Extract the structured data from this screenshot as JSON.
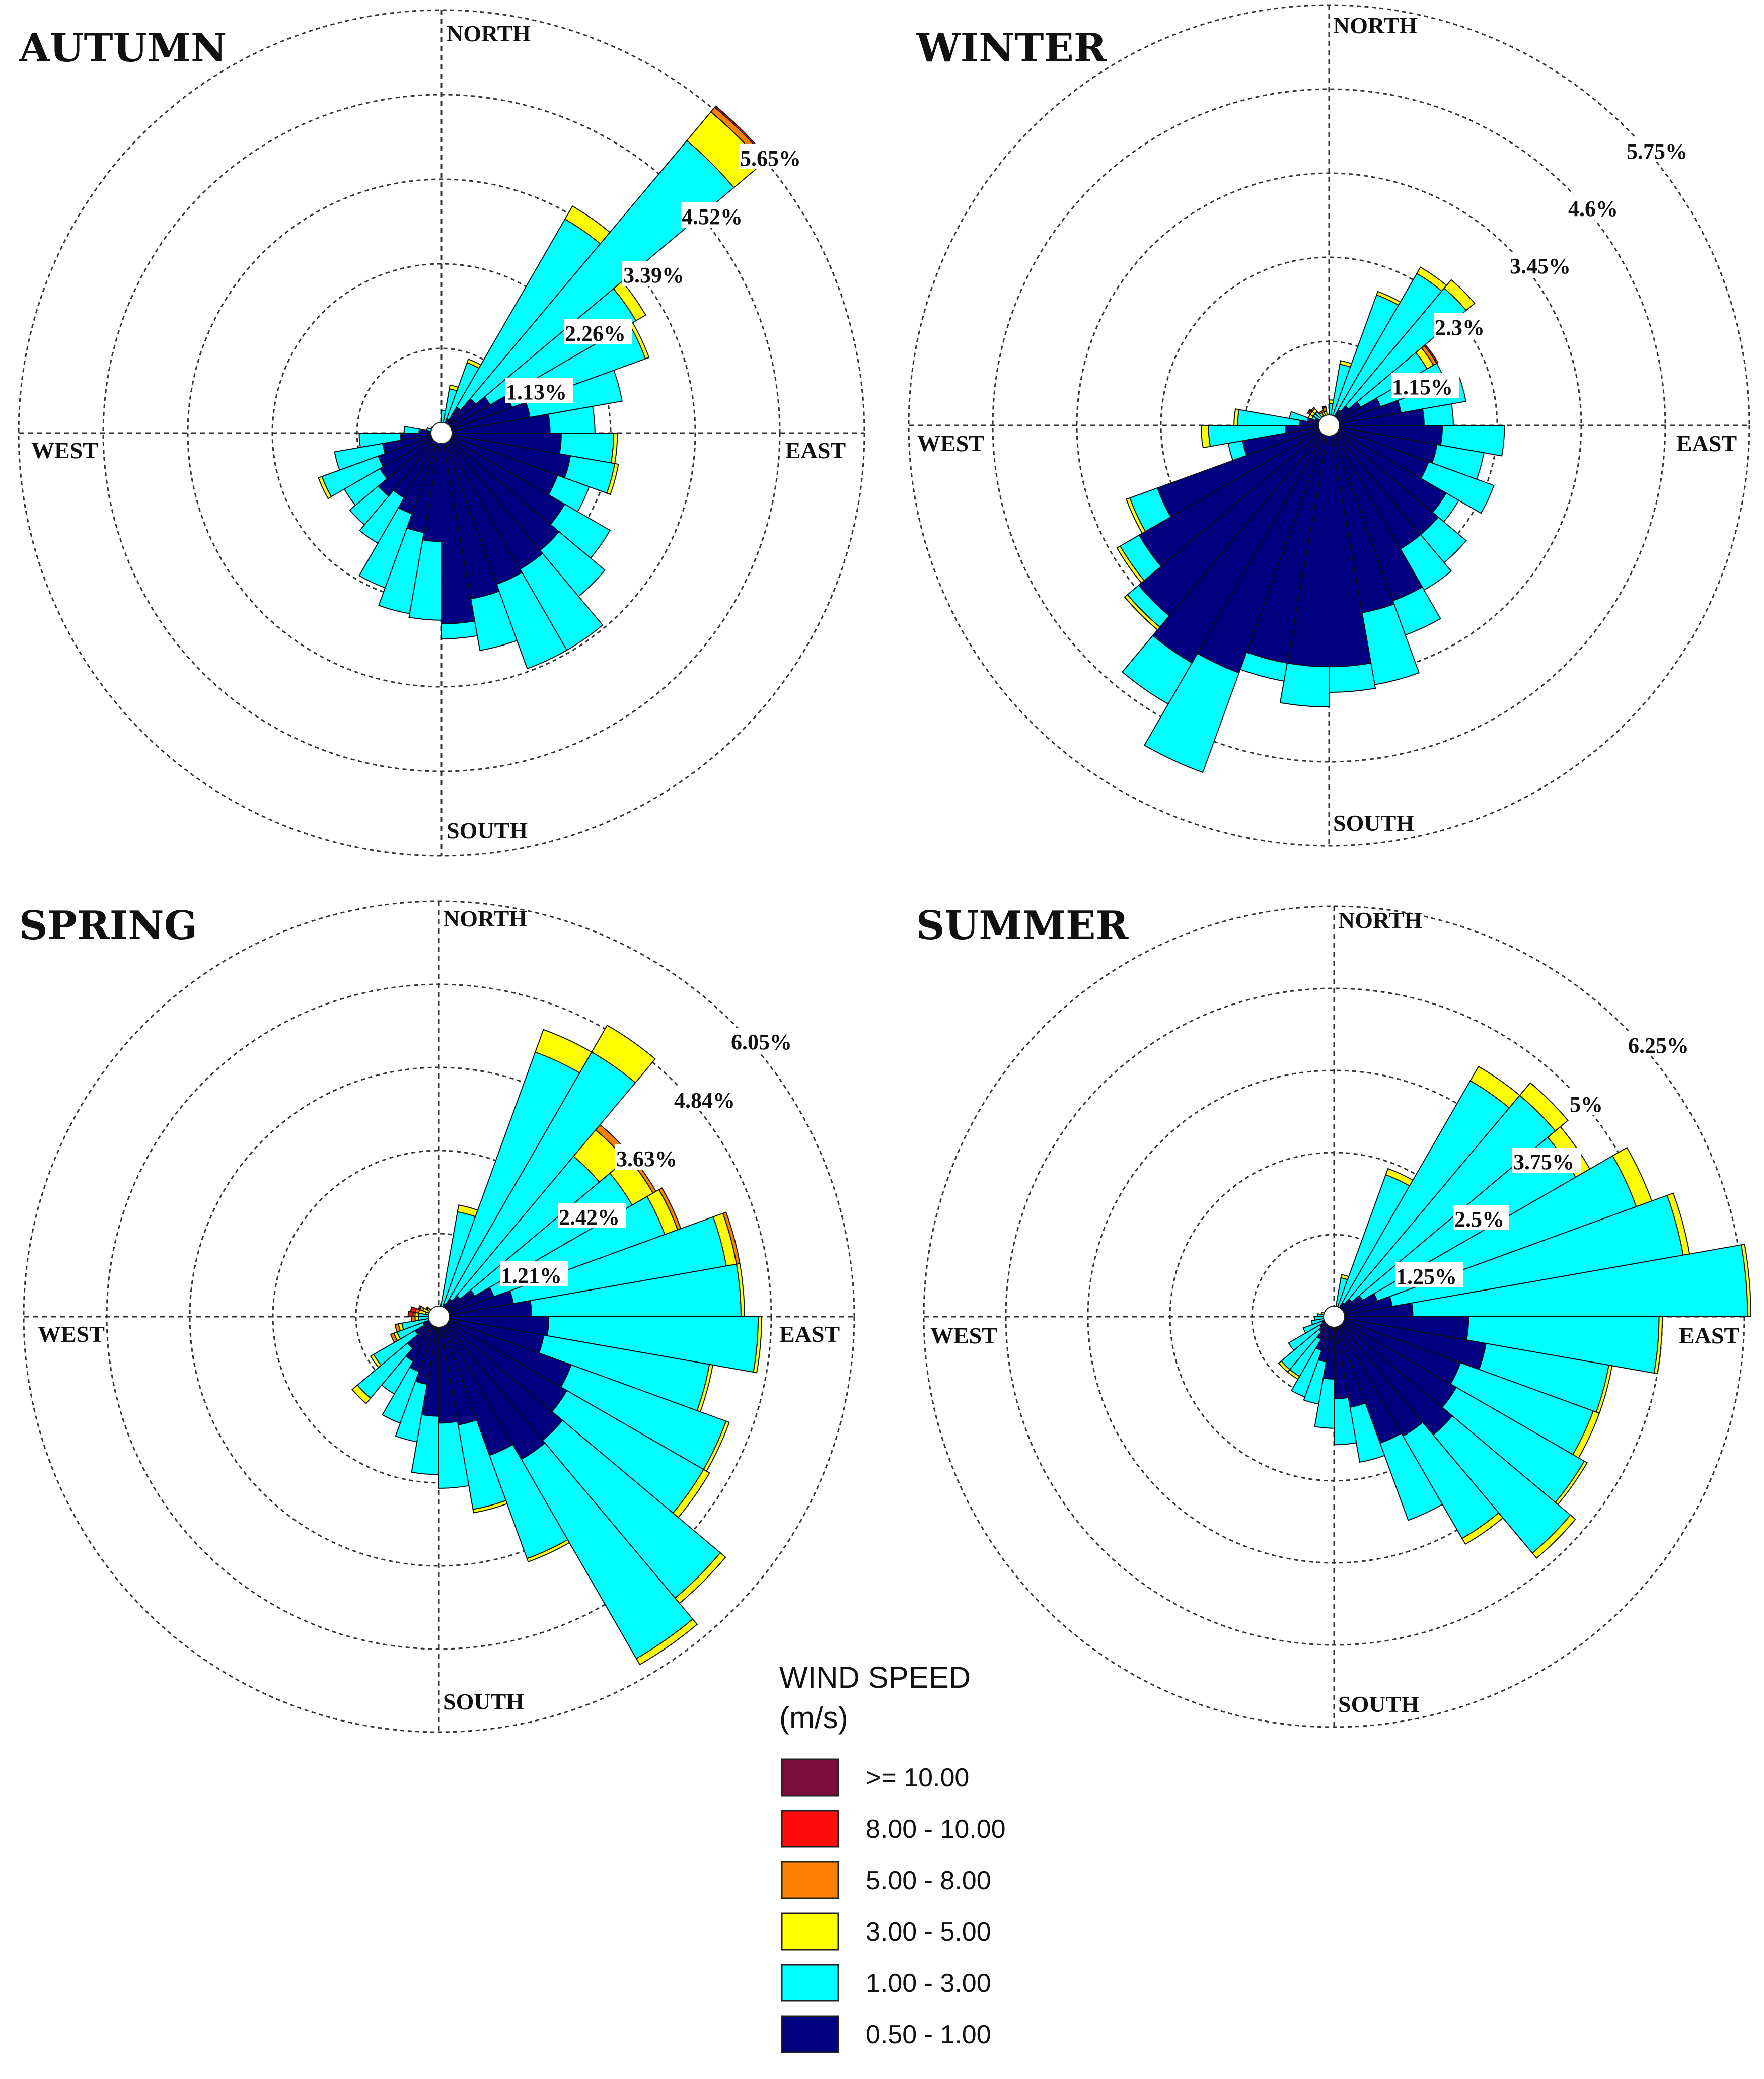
{
  "legend": {
    "title_line1": "WIND SPEED",
    "title_line2": "(m/s)",
    "bins": [
      {
        "label": ">= 10.00",
        "color": "#7a0d3a"
      },
      {
        "label": "8.00 - 10.00",
        "color": "#ff0d0d"
      },
      {
        "label": "5.00 - 8.00",
        "color": "#ff7f00"
      },
      {
        "label": "3.00 - 5.00",
        "color": "#ffff00"
      },
      {
        "label": "1.00 - 3.00",
        "color": "#00ffff"
      },
      {
        "label": "0.50 - 1.00",
        "color": "#000080"
      }
    ]
  },
  "chart_data": [
    {
      "type": "windrose",
      "title": "AUTUMN",
      "directions": {
        "north": "NORTH",
        "south": "SOUTH",
        "east": "EAST",
        "west": "WEST"
      },
      "ring_labels": [
        "1.13%",
        "2.26%",
        "3.39%",
        "4.52%",
        "5.65%"
      ],
      "ring_values": [
        1.13,
        2.26,
        3.39,
        4.52,
        5.65
      ],
      "sectors": 36,
      "sector_width_deg": 10,
      "speed_bins": [
        "0.50 - 1.00",
        "1.00 - 3.00",
        "3.00 - 5.00",
        "5.00 - 8.00",
        "8.00 - 10.00",
        ">= 10.00"
      ],
      "cumulative_percent": [
        [
          0.05,
          0.3,
          0.3,
          0.3,
          0.3,
          0.3
        ],
        [
          0.1,
          0.6,
          0.65,
          0.65,
          0.65,
          0.65
        ],
        [
          0.2,
          1.0,
          1.05,
          1.05,
          1.05,
          1.05
        ],
        [
          0.4,
          3.3,
          3.5,
          3.5,
          3.5,
          3.5
        ],
        [
          0.6,
          5.1,
          5.6,
          5.68,
          5.7,
          5.7
        ],
        [
          0.75,
          3.0,
          3.15,
          3.15,
          3.15,
          3.15
        ],
        [
          1.0,
          2.9,
          2.95,
          2.95,
          2.95,
          2.95
        ],
        [
          1.2,
          2.45,
          2.45,
          2.45,
          2.45,
          2.45
        ],
        [
          1.45,
          2.05,
          2.05,
          2.05,
          2.05,
          2.05
        ],
        [
          1.6,
          2.3,
          2.35,
          2.35,
          2.35,
          2.35
        ],
        [
          1.75,
          2.35,
          2.4,
          2.4,
          2.4,
          2.4
        ],
        [
          1.65,
          2.1,
          2.1,
          2.1,
          2.1,
          2.1
        ],
        [
          1.9,
          2.6,
          2.6,
          2.6,
          2.6,
          2.6
        ],
        [
          2.05,
          2.85,
          2.85,
          2.85,
          2.85,
          2.85
        ],
        [
          2.1,
          3.35,
          3.35,
          3.35,
          3.35,
          3.35
        ],
        [
          2.15,
          3.35,
          3.35,
          3.35,
          3.35,
          3.35
        ],
        [
          2.25,
          2.95,
          2.95,
          2.95,
          2.95,
          2.95
        ],
        [
          2.55,
          2.75,
          2.75,
          2.75,
          2.75,
          2.75
        ],
        [
          1.45,
          2.5,
          2.5,
          2.5,
          2.5,
          2.5
        ],
        [
          1.35,
          2.45,
          2.45,
          2.45,
          2.45,
          2.45
        ],
        [
          1.15,
          2.2,
          2.2,
          2.2,
          2.2,
          2.2
        ],
        [
          1.0,
          1.7,
          1.7,
          1.7,
          1.7,
          1.7
        ],
        [
          1.1,
          1.6,
          1.6,
          1.6,
          1.6,
          1.6
        ],
        [
          0.95,
          1.5,
          1.5,
          1.5,
          1.5,
          1.5
        ],
        [
          0.9,
          1.7,
          1.75,
          1.75,
          1.75,
          1.75
        ],
        [
          0.8,
          1.45,
          1.45,
          1.45,
          1.45,
          1.45
        ],
        [
          0.55,
          1.1,
          1.1,
          1.1,
          1.1,
          1.1
        ],
        [
          0.3,
          0.5,
          0.5,
          0.5,
          0.5,
          0.5
        ],
        [
          0.1,
          0.2,
          0.2,
          0.2,
          0.2,
          0.2
        ],
        [
          0.05,
          0.15,
          0.15,
          0.15,
          0.15,
          0.15
        ],
        [
          0.05,
          0.1,
          0.1,
          0.1,
          0.1,
          0.1
        ],
        [
          0.05,
          0.12,
          0.12,
          0.12,
          0.12,
          0.12
        ],
        [
          0.05,
          0.1,
          0.1,
          0.1,
          0.1,
          0.1
        ],
        [
          0.05,
          0.1,
          0.1,
          0.1,
          0.1,
          0.1
        ],
        [
          0.05,
          0.1,
          0.1,
          0.1,
          0.1,
          0.1
        ],
        [
          0.05,
          0.1,
          0.1,
          0.1,
          0.1,
          0.1
        ]
      ]
    },
    {
      "type": "windrose",
      "title": "WINTER",
      "directions": {
        "north": "NORTH",
        "south": "SOUTH",
        "east": "EAST",
        "west": "WEST"
      },
      "ring_labels": [
        "1.15%",
        "2.3%",
        "3.45%",
        "4.6%",
        "5.75%"
      ],
      "ring_values": [
        1.15,
        2.3,
        3.45,
        4.6,
        5.75
      ],
      "sectors": 36,
      "sector_width_deg": 10,
      "speed_bins": [
        "0.50 - 1.00",
        "1.00 - 3.00",
        "3.00 - 5.00",
        "5.00 - 8.00",
        "8.00 - 10.00",
        ">= 10.00"
      ],
      "cumulative_percent": [
        [
          0.05,
          0.3,
          0.35,
          0.35,
          0.35,
          0.35
        ],
        [
          0.1,
          0.85,
          0.9,
          0.9,
          0.9,
          0.9
        ],
        [
          0.15,
          1.9,
          1.95,
          1.95,
          1.95,
          1.95
        ],
        [
          0.25,
          2.4,
          2.5,
          2.5,
          2.5,
          2.5
        ],
        [
          0.35,
          2.45,
          2.6,
          2.6,
          2.6,
          2.6
        ],
        [
          0.5,
          1.55,
          1.65,
          1.7,
          1.72,
          1.72
        ],
        [
          0.75,
          1.7,
          1.7,
          1.7,
          1.7,
          1.7
        ],
        [
          1.0,
          1.9,
          1.9,
          1.9,
          1.9,
          1.9
        ],
        [
          1.3,
          1.7,
          1.7,
          1.7,
          1.7,
          1.7
        ],
        [
          1.55,
          2.4,
          2.4,
          2.4,
          2.4,
          2.4
        ],
        [
          1.5,
          2.15,
          2.15,
          2.15,
          2.15,
          2.15
        ],
        [
          1.45,
          2.4,
          2.4,
          2.4,
          2.4,
          2.4
        ],
        [
          1.85,
          2.05,
          2.05,
          2.05,
          2.05,
          2.05
        ],
        [
          1.95,
          2.45,
          2.45,
          2.45,
          2.45,
          2.45
        ],
        [
          1.95,
          2.6,
          2.6,
          2.6,
          2.6,
          2.6
        ],
        [
          2.55,
          3.05,
          3.05,
          3.05,
          3.05,
          3.05
        ],
        [
          2.6,
          3.6,
          3.6,
          3.6,
          3.6,
          3.6
        ],
        [
          3.3,
          3.65,
          3.65,
          3.65,
          3.65,
          3.65
        ],
        [
          3.3,
          3.85,
          3.85,
          3.85,
          3.85,
          3.85
        ],
        [
          3.3,
          3.55,
          3.55,
          3.55,
          3.55,
          3.55
        ],
        [
          3.6,
          5.05,
          5.05,
          5.05,
          5.05,
          5.05
        ],
        [
          3.75,
          4.4,
          4.4,
          4.4,
          4.4,
          4.4
        ],
        [
          3.4,
          3.6,
          3.65,
          3.65,
          3.65,
          3.65
        ],
        [
          3.0,
          3.3,
          3.35,
          3.35,
          3.35,
          3.35
        ],
        [
          2.5,
          2.9,
          2.95,
          2.95,
          2.95,
          2.95
        ],
        [
          1.2,
          1.4,
          1.4,
          1.4,
          1.4,
          1.4
        ],
        [
          0.6,
          1.65,
          1.75,
          1.75,
          1.75,
          1.75
        ],
        [
          0.4,
          1.25,
          1.3,
          1.3,
          1.3,
          1.3
        ],
        [
          0.3,
          0.55,
          0.55,
          0.55,
          0.55,
          0.55
        ],
        [
          0.2,
          0.25,
          0.3,
          0.3,
          0.3,
          0.3
        ],
        [
          0.1,
          0.25,
          0.3,
          0.32,
          0.34,
          0.34
        ],
        [
          0.1,
          0.25,
          0.3,
          0.32,
          0.32,
          0.32
        ],
        [
          0.05,
          0.15,
          0.2,
          0.22,
          0.22,
          0.22
        ],
        [
          0.05,
          0.1,
          0.2,
          0.22,
          0.22,
          0.22
        ],
        [
          0.05,
          0.12,
          0.2,
          0.25,
          0.27,
          0.27
        ],
        [
          0.05,
          0.1,
          0.15,
          0.15,
          0.15,
          0.15
        ]
      ]
    },
    {
      "type": "windrose",
      "title": "SPRING",
      "directions": {
        "north": "NORTH",
        "south": "SOUTH",
        "east": "EAST",
        "west": "WEST"
      },
      "ring_labels": [
        "1.21%",
        "2.42%",
        "3.63%",
        "4.84%",
        "6.05%"
      ],
      "ring_values": [
        1.21,
        2.42,
        3.63,
        4.84,
        6.05
      ],
      "sectors": 36,
      "sector_width_deg": 10,
      "speed_bins": [
        "0.50 - 1.00",
        "1.00 - 3.00",
        "3.00 - 5.00",
        "5.00 - 8.00",
        "8.00 - 10.00",
        ">= 10.00"
      ],
      "cumulative_percent": [
        [
          0.05,
          0.1,
          0.1,
          0.1,
          0.1,
          0.1
        ],
        [
          0.1,
          1.55,
          1.65,
          1.65,
          1.65,
          1.65
        ],
        [
          0.2,
          4.1,
          4.45,
          4.45,
          4.45,
          4.45
        ],
        [
          0.3,
          4.45,
          4.9,
          4.9,
          4.9,
          4.9
        ],
        [
          0.4,
          3.05,
          3.55,
          3.65,
          3.65,
          3.65
        ],
        [
          0.6,
          3.25,
          3.6,
          3.65,
          3.65,
          3.65
        ],
        [
          0.85,
          3.5,
          3.7,
          3.75,
          3.75,
          3.75
        ],
        [
          1.1,
          4.25,
          4.4,
          4.45,
          4.45,
          4.45
        ],
        [
          1.35,
          4.4,
          4.45,
          4.45,
          4.45,
          4.45
        ],
        [
          1.6,
          4.65,
          4.7,
          4.7,
          4.7,
          4.7
        ],
        [
          1.55,
          4.0,
          4.05,
          4.05,
          4.05,
          4.05
        ],
        [
          2.05,
          4.45,
          4.5,
          4.5,
          4.5,
          4.5
        ],
        [
          2.15,
          4.45,
          4.55,
          4.55,
          4.55,
          4.55
        ],
        [
          2.35,
          5.35,
          5.45,
          5.45,
          5.45,
          5.45
        ],
        [
          2.4,
          5.75,
          5.85,
          5.85,
          5.85,
          5.85
        ],
        [
          2.15,
          3.75,
          3.8,
          3.8,
          3.8,
          3.8
        ],
        [
          1.6,
          2.85,
          2.9,
          2.9,
          2.9,
          2.9
        ],
        [
          1.55,
          2.5,
          2.5,
          2.5,
          2.5,
          2.5
        ],
        [
          1.45,
          2.3,
          2.3,
          2.3,
          2.3,
          2.3
        ],
        [
          1.0,
          1.85,
          1.85,
          1.85,
          1.85,
          1.85
        ],
        [
          0.85,
          1.65,
          1.65,
          1.65,
          1.65,
          1.65
        ],
        [
          0.75,
          1.3,
          1.3,
          1.3,
          1.3,
          1.3
        ],
        [
          0.6,
          1.55,
          1.65,
          1.65,
          1.65,
          1.65
        ],
        [
          0.4,
          1.1,
          1.15,
          1.15,
          1.15,
          1.15
        ],
        [
          0.25,
          0.65,
          0.7,
          0.75,
          0.75,
          0.75
        ],
        [
          0.15,
          0.55,
          0.6,
          0.65,
          0.65,
          0.65
        ],
        [
          0.1,
          0.3,
          0.35,
          0.4,
          0.4,
          0.4
        ],
        [
          0.1,
          0.3,
          0.35,
          0.38,
          0.45,
          0.45
        ],
        [
          0.1,
          0.2,
          0.3,
          0.35,
          0.42,
          0.42
        ],
        [
          0.1,
          0.15,
          0.25,
          0.3,
          0.32,
          0.32
        ],
        [
          0.1,
          0.15,
          0.2,
          0.22,
          0.22,
          0.22
        ],
        [
          0.05,
          0.12,
          0.15,
          0.15,
          0.15,
          0.15
        ],
        [
          0.05,
          0.1,
          0.12,
          0.12,
          0.12,
          0.12
        ],
        [
          0.05,
          0.1,
          0.1,
          0.1,
          0.1,
          0.1
        ],
        [
          0.05,
          0.1,
          0.1,
          0.1,
          0.1,
          0.1
        ],
        [
          0.05,
          0.1,
          0.1,
          0.1,
          0.1,
          0.1
        ]
      ]
    },
    {
      "type": "windrose",
      "title": "SUMMER",
      "directions": {
        "north": "NORTH",
        "south": "SOUTH",
        "east": "EAST",
        "west": "WEST"
      },
      "ring_labels": [
        "1.25%",
        "2.5%",
        "3.75%",
        "5%",
        "6.25%"
      ],
      "ring_values": [
        1.25,
        2.5,
        3.75,
        5.0,
        6.25
      ],
      "sectors": 36,
      "sector_width_deg": 10,
      "speed_bins": [
        "0.50 - 1.00",
        "1.00 - 3.00",
        "3.00 - 5.00",
        "5.00 - 8.00",
        "8.00 - 10.00",
        ">= 10.00"
      ],
      "cumulative_percent": [
        [
          0.05,
          0.1,
          0.1,
          0.1,
          0.1,
          0.1
        ],
        [
          0.1,
          0.6,
          0.65,
          0.65,
          0.65,
          0.65
        ],
        [
          0.15,
          2.3,
          2.4,
          2.4,
          2.4,
          2.4
        ],
        [
          0.25,
          4.15,
          4.4,
          4.4,
          4.4,
          4.4
        ],
        [
          0.35,
          4.4,
          4.65,
          4.65,
          4.65,
          4.65
        ],
        [
          0.5,
          4.25,
          4.5,
          4.5,
          4.5,
          4.5
        ],
        [
          0.7,
          4.9,
          5.15,
          5.15,
          5.15,
          5.15
        ],
        [
          0.9,
          5.4,
          5.5,
          5.5,
          5.5,
          5.5
        ],
        [
          1.2,
          6.3,
          6.35,
          6.35,
          6.35,
          6.35
        ],
        [
          2.05,
          4.95,
          5.0,
          5.0,
          5.0,
          5.0
        ],
        [
          2.35,
          4.25,
          4.3,
          4.3,
          4.3,
          4.3
        ],
        [
          2.05,
          4.2,
          4.3,
          4.3,
          4.3,
          4.3
        ],
        [
          2.15,
          4.4,
          4.45,
          4.45,
          4.45,
          4.45
        ],
        [
          2.35,
          4.7,
          4.8,
          4.8,
          4.8,
          4.8
        ],
        [
          2.1,
          3.9,
          4.0,
          4.0,
          4.0,
          4.0
        ],
        [
          2.05,
          3.3,
          3.3,
          3.3,
          3.3,
          3.3
        ],
        [
          1.4,
          2.25,
          2.25,
          2.25,
          2.25,
          2.25
        ],
        [
          1.25,
          1.95,
          1.95,
          1.95,
          1.95,
          1.95
        ],
        [
          0.95,
          1.7,
          1.7,
          1.7,
          1.7,
          1.7
        ],
        [
          0.7,
          1.35,
          1.35,
          1.35,
          1.35,
          1.35
        ],
        [
          0.55,
          1.3,
          1.3,
          1.3,
          1.3,
          1.3
        ],
        [
          0.4,
          1.05,
          1.1,
          1.1,
          1.1,
          1.1
        ],
        [
          0.3,
          1.05,
          1.1,
          1.1,
          1.1,
          1.1
        ],
        [
          0.25,
          0.8,
          0.8,
          0.8,
          0.8,
          0.8
        ],
        [
          0.2,
          0.5,
          0.5,
          0.5,
          0.5,
          0.5
        ],
        [
          0.15,
          0.35,
          0.35,
          0.35,
          0.35,
          0.35
        ],
        [
          0.1,
          0.3,
          0.3,
          0.3,
          0.3,
          0.3
        ],
        [
          0.1,
          0.25,
          0.25,
          0.25,
          0.25,
          0.25
        ],
        [
          0.05,
          0.15,
          0.2,
          0.2,
          0.2,
          0.2
        ],
        [
          0.05,
          0.12,
          0.15,
          0.15,
          0.15,
          0.15
        ],
        [
          0.05,
          0.12,
          0.15,
          0.15,
          0.15,
          0.15
        ],
        [
          0.05,
          0.12,
          0.12,
          0.12,
          0.12,
          0.12
        ],
        [
          0.05,
          0.1,
          0.1,
          0.1,
          0.1,
          0.1
        ],
        [
          0.05,
          0.1,
          0.1,
          0.1,
          0.1,
          0.1
        ],
        [
          0.05,
          0.1,
          0.1,
          0.1,
          0.1,
          0.1
        ],
        [
          0.05,
          0.1,
          0.1,
          0.1,
          0.1,
          0.1
        ]
      ]
    }
  ]
}
